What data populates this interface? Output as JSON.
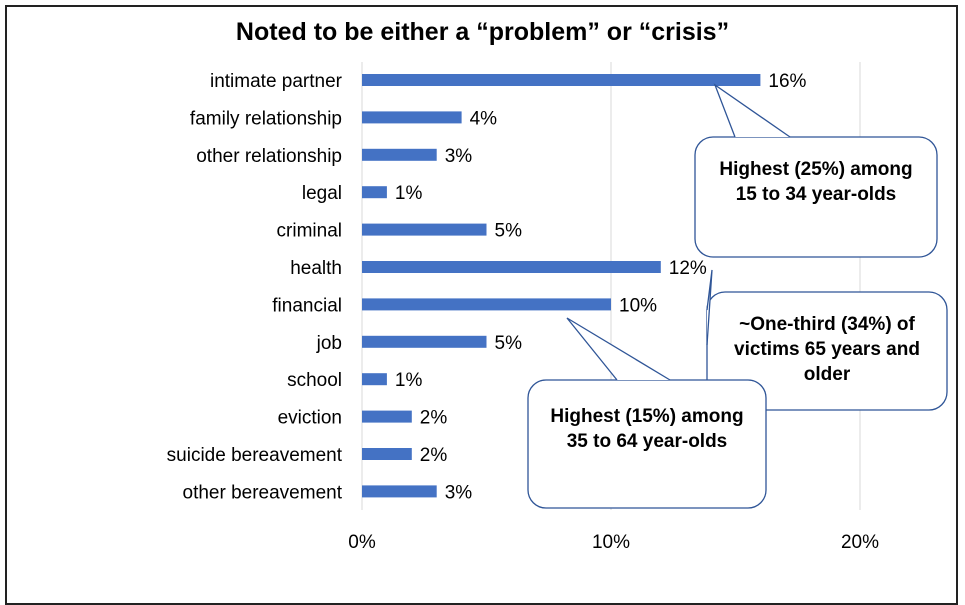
{
  "chart_data": {
    "type": "bar",
    "orientation": "horizontal",
    "title": "Noted to be either a “problem” or “crisis”",
    "categories": [
      "intimate partner",
      "family relationship",
      "other relationship",
      "legal",
      "criminal",
      "health",
      "financial",
      "job",
      "school",
      "eviction",
      "suicide bereavement",
      "other bereavement"
    ],
    "values": [
      16,
      4,
      3,
      1,
      5,
      12,
      10,
      5,
      1,
      2,
      2,
      3
    ],
    "data_labels": [
      "16%",
      "4%",
      "3%",
      "1%",
      "5%",
      "12%",
      "10%",
      "5%",
      "1%",
      "2%",
      "2%",
      "3%"
    ],
    "x_ticks": [
      0,
      10,
      20
    ],
    "x_tick_labels": [
      "0%",
      "10%",
      "20%"
    ],
    "xlim": [
      0,
      20
    ],
    "xlabel": "",
    "ylabel": "",
    "grid": "vertical",
    "bar_color": "#4472C4",
    "annotations": [
      {
        "category": "intimate partner",
        "text": "Highest (25%) among 15 to 34 year-olds"
      },
      {
        "category": "health",
        "text": "~One-third (34%) of victims 65 years and older"
      },
      {
        "category": "financial",
        "text": "Highest (15%) among 35  to 64 year-olds"
      }
    ]
  }
}
